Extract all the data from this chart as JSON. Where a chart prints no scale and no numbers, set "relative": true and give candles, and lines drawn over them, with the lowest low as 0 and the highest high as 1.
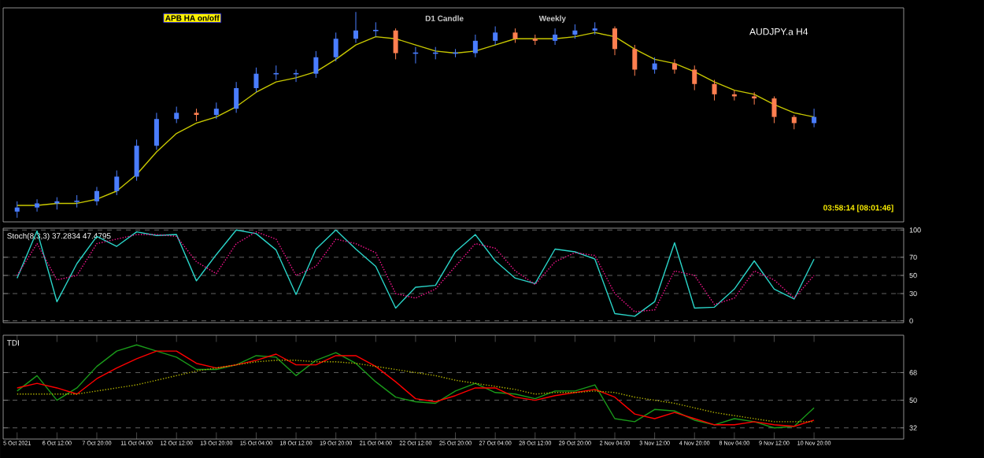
{
  "chart_data": [
    {
      "type": "candlestick",
      "title": "AUDJPY.a H4",
      "relative": true,
      "tick_labels": false,
      "annotations": [
        "APB HA on/off",
        "D1 Candle",
        "Weekly",
        "03:58:14 [08:01:46]"
      ],
      "categories": [
        null,
        null,
        null,
        null,
        null,
        null,
        null,
        null,
        null,
        null,
        null,
        null,
        null,
        null,
        null,
        null,
        null,
        null,
        null,
        null,
        null,
        null,
        null,
        null,
        null,
        null,
        null,
        null,
        null,
        null,
        null,
        null,
        null,
        null,
        null,
        null,
        null,
        null,
        null,
        null,
        null
      ],
      "ohlc": [
        [
          0.03,
          0.08,
          0.0,
          0.05
        ],
        [
          0.05,
          0.09,
          0.03,
          0.07
        ],
        [
          0.07,
          0.1,
          0.04,
          0.08
        ],
        [
          0.08,
          0.11,
          0.05,
          0.08
        ],
        [
          0.08,
          0.15,
          0.06,
          0.13
        ],
        [
          0.13,
          0.23,
          0.11,
          0.2
        ],
        [
          0.2,
          0.38,
          0.18,
          0.35
        ],
        [
          0.35,
          0.51,
          0.33,
          0.48
        ],
        [
          0.48,
          0.54,
          0.46,
          0.51
        ],
        [
          0.51,
          0.53,
          0.47,
          0.5
        ],
        [
          0.5,
          0.56,
          0.48,
          0.53
        ],
        [
          0.53,
          0.66,
          0.51,
          0.63
        ],
        [
          0.63,
          0.73,
          0.61,
          0.7
        ],
        [
          0.7,
          0.74,
          0.67,
          0.7
        ],
        [
          0.7,
          0.72,
          0.66,
          0.7
        ],
        [
          0.7,
          0.81,
          0.68,
          0.78
        ],
        [
          0.78,
          0.9,
          0.76,
          0.87
        ],
        [
          0.87,
          1.0,
          0.85,
          0.91
        ],
        [
          0.91,
          0.95,
          0.88,
          0.91
        ],
        [
          0.91,
          0.92,
          0.77,
          0.8
        ],
        [
          0.8,
          0.83,
          0.75,
          0.8
        ],
        [
          0.8,
          0.83,
          0.77,
          0.8
        ],
        [
          0.8,
          0.82,
          0.78,
          0.8
        ],
        [
          0.8,
          0.89,
          0.78,
          0.86
        ],
        [
          0.86,
          0.93,
          0.84,
          0.9
        ],
        [
          0.9,
          0.92,
          0.85,
          0.87
        ],
        [
          0.87,
          0.89,
          0.84,
          0.86
        ],
        [
          0.86,
          0.92,
          0.84,
          0.89
        ],
        [
          0.89,
          0.94,
          0.87,
          0.91
        ],
        [
          0.91,
          0.95,
          0.89,
          0.92
        ],
        [
          0.92,
          0.93,
          0.79,
          0.82
        ],
        [
          0.82,
          0.84,
          0.69,
          0.72
        ],
        [
          0.72,
          0.78,
          0.7,
          0.75
        ],
        [
          0.75,
          0.77,
          0.7,
          0.72
        ],
        [
          0.72,
          0.74,
          0.62,
          0.65
        ],
        [
          0.65,
          0.67,
          0.57,
          0.6
        ],
        [
          0.6,
          0.62,
          0.57,
          0.59
        ],
        [
          0.59,
          0.61,
          0.55,
          0.58
        ],
        [
          0.58,
          0.59,
          0.46,
          0.49
        ],
        [
          0.49,
          0.5,
          0.43,
          0.46
        ],
        [
          0.46,
          0.53,
          0.44,
          0.49
        ]
      ],
      "series": [
        {
          "type": "line",
          "color": "#c8c800",
          "values": [
            0.06,
            0.06,
            0.07,
            0.07,
            0.09,
            0.13,
            0.21,
            0.32,
            0.41,
            0.46,
            0.49,
            0.54,
            0.61,
            0.66,
            0.68,
            0.71,
            0.77,
            0.84,
            0.88,
            0.87,
            0.84,
            0.81,
            0.8,
            0.81,
            0.84,
            0.87,
            0.87,
            0.87,
            0.88,
            0.9,
            0.88,
            0.82,
            0.77,
            0.75,
            0.71,
            0.66,
            0.62,
            0.6,
            0.55,
            0.51,
            0.49
          ]
        }
      ]
    },
    {
      "type": "line",
      "title": "Stoch(8,3,3) 37.2834 47.4795",
      "tick_labels": "y",
      "ylim": [
        0,
        100
      ],
      "yticks": [
        0,
        30,
        50,
        70,
        100
      ],
      "grid": "y",
      "categories": [
        null,
        null,
        null,
        null,
        null,
        null,
        null,
        null,
        null,
        null,
        null,
        null,
        null,
        null,
        null,
        null,
        null,
        null,
        null,
        null,
        null,
        null,
        null,
        null,
        null,
        null,
        null,
        null,
        null,
        null,
        null,
        null,
        null,
        null,
        null,
        null,
        null,
        null,
        null,
        null,
        null
      ],
      "series": [
        {
          "color": "#2ad4c8",
          "line_style": "solid",
          "values": [
            47,
            99,
            21,
            63,
            93,
            82,
            98,
            94,
            95,
            44,
            73,
            100,
            96,
            78,
            29,
            79,
            100,
            79,
            60,
            14,
            37,
            39,
            76,
            95,
            66,
            47,
            41,
            79,
            76,
            68,
            8,
            5,
            21,
            86,
            14,
            15,
            35,
            66,
            35,
            24,
            68
          ]
        },
        {
          "color": "#ff1493",
          "line_style": "dotted",
          "values": [
            50,
            85,
            45,
            50,
            85,
            90,
            95,
            95,
            93,
            65,
            52,
            85,
            98,
            90,
            50,
            60,
            90,
            85,
            75,
            30,
            25,
            35,
            60,
            85,
            80,
            55,
            40,
            65,
            75,
            72,
            30,
            10,
            12,
            55,
            50,
            18,
            25,
            55,
            45,
            25,
            50
          ]
        }
      ]
    },
    {
      "type": "line",
      "title": "TDI",
      "ylim": [
        26,
        91
      ],
      "yticks": [
        32,
        50,
        68
      ],
      "grid": "y",
      "categories": [
        "5 Oct 2021",
        null,
        "6 Oct 12:00",
        null,
        "7 Oct 20:00",
        null,
        "11 Oct 04:00",
        null,
        "12 Oct 12:00",
        null,
        "13 Oct 20:00",
        null,
        "15 Oct 04:00",
        null,
        "18 Oct 12:00",
        null,
        "19 Oct 20:00",
        null,
        "21 Oct 04:00",
        null,
        "22 Oct 12:00",
        null,
        "25 Oct 20:00",
        null,
        "27 Oct 04:00",
        null,
        "28 Oct 12:00",
        null,
        "29 Oct 20:00",
        null,
        "2 Nov 04:00",
        null,
        "3 Nov 12:00",
        null,
        "4 Nov 20:00",
        null,
        "8 Nov 04:00",
        null,
        "9 Nov 12:00",
        null,
        "10 Nov 20:00"
      ],
      "series": [
        {
          "color": "#1a9a1a",
          "line_style": "solid",
          "values": [
            56,
            66,
            50,
            58,
            72,
            82,
            86,
            82,
            78,
            70,
            70,
            73,
            79,
            78,
            66,
            76,
            81,
            74,
            62,
            52,
            49,
            48,
            56,
            61,
            55,
            54,
            51,
            56,
            56,
            60,
            38,
            36,
            44,
            43,
            37,
            34,
            38,
            36,
            32,
            33,
            45
          ]
        },
        {
          "color": "#ff0000",
          "line_style": "solid",
          "values": [
            58,
            61,
            58,
            54,
            64,
            71,
            77,
            82,
            82,
            74,
            71,
            73,
            76,
            80,
            73,
            73,
            79,
            79,
            72,
            62,
            51,
            49,
            53,
            58,
            58,
            52,
            50,
            53,
            55,
            57,
            52,
            41,
            38,
            42,
            38,
            34,
            34,
            36,
            34,
            33,
            37
          ]
        },
        {
          "color": "#b0b000",
          "line_style": "dotted",
          "values": [
            54,
            54,
            54,
            54,
            56,
            58,
            60,
            63,
            66,
            69,
            71,
            73,
            75,
            76,
            76,
            75,
            75,
            74,
            72,
            70,
            68,
            66,
            63,
            61,
            59,
            57,
            54,
            55,
            55,
            56,
            55,
            52,
            50,
            48,
            45,
            42,
            40,
            38,
            36,
            36,
            36
          ]
        }
      ]
    }
  ]
}
